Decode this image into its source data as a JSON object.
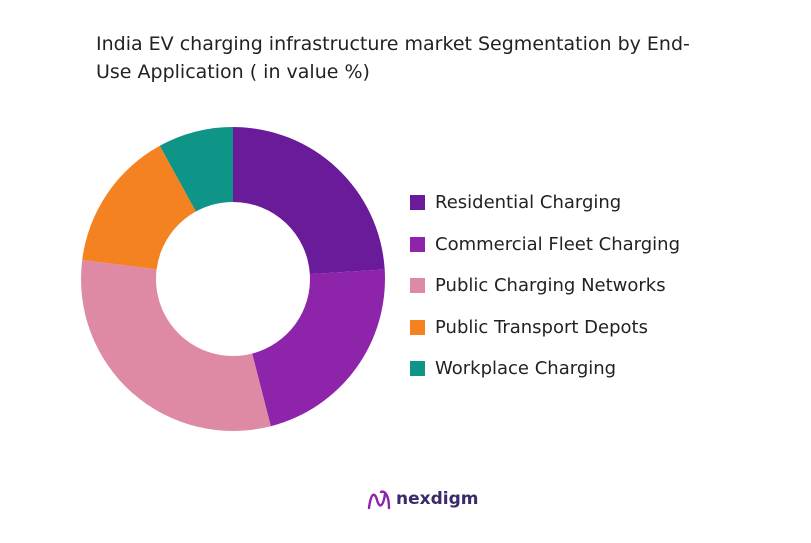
{
  "chart_data": {
    "type": "donut",
    "title": "India EV charging infrastructure market Segmentation by End-Use Application ( in value %)",
    "categories": [
      "Residential Charging",
      "Commercial Fleet Charging",
      "Public Charging Networks",
      "Public Transport Depots",
      "Workplace Charging"
    ],
    "values": [
      24,
      22,
      31,
      15,
      8
    ],
    "colors": [
      "#6a1b9a",
      "#8e24aa",
      "#de8aa4",
      "#f58220",
      "#0f9488"
    ],
    "legend": "right"
  },
  "logo": "nexdigm"
}
